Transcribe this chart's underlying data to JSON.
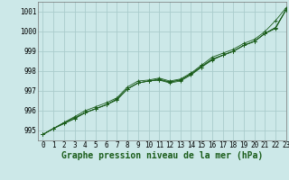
{
  "background_color": "#cce8e8",
  "grid_color": "#aacccc",
  "line_color": "#1a5c1a",
  "xlabel": "Graphe pression niveau de la mer (hPa)",
  "xlabel_fontsize": 7,
  "tick_fontsize": 5.5,
  "xlim": [
    -0.5,
    23
  ],
  "ylim": [
    994.5,
    1001.5
  ],
  "yticks": [
    995,
    996,
    997,
    998,
    999,
    1000,
    1001
  ],
  "xticks": [
    0,
    1,
    2,
    3,
    4,
    5,
    6,
    7,
    8,
    9,
    10,
    11,
    12,
    13,
    14,
    15,
    16,
    17,
    18,
    19,
    20,
    21,
    22,
    23
  ],
  "series": [
    [
      994.8,
      995.1,
      995.4,
      995.7,
      995.95,
      996.15,
      996.35,
      996.6,
      997.15,
      997.4,
      997.5,
      997.6,
      997.45,
      997.6,
      997.95,
      998.2,
      998.6,
      998.85,
      999.05,
      999.35,
      999.5,
      999.9,
      1000.2,
      1001.15
    ],
    [
      994.8,
      995.1,
      995.4,
      995.7,
      995.95,
      996.15,
      996.35,
      996.65,
      997.15,
      997.45,
      997.55,
      997.65,
      997.1,
      997.55,
      997.85,
      998.35,
      998.7,
      998.9,
      999.1,
      999.4,
      999.65,
      999.95,
      1000.35,
      1001.2
    ],
    [
      994.8,
      995.1,
      995.4,
      995.7,
      995.95,
      996.15,
      996.35,
      996.65,
      997.15,
      997.45,
      997.5,
      997.6,
      997.45,
      997.6,
      997.9,
      998.25,
      998.65,
      998.85,
      999.05,
      999.35,
      999.55,
      1000.0,
      1000.55,
      1001.1
    ],
    [
      994.8,
      995.1,
      995.4,
      995.7,
      995.95,
      996.15,
      996.35,
      996.65,
      997.15,
      997.45,
      997.5,
      997.6,
      997.45,
      997.6,
      997.9,
      998.25,
      998.65,
      998.85,
      999.05,
      999.35,
      999.55,
      999.95,
      1000.35,
      1001.1
    ]
  ]
}
